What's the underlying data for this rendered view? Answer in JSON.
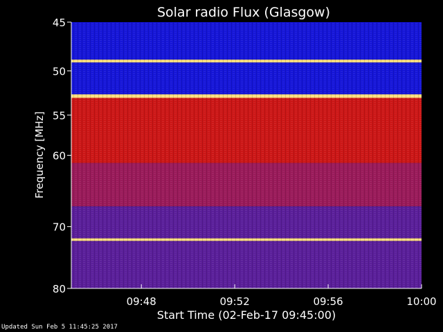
{
  "chart_data": {
    "type": "heatmap",
    "title": "Solar radio Flux (Glasgow)",
    "xlabel": "Start Time (02-Feb-17 09:45:00)",
    "ylabel": "Frequency [MHz]",
    "xlim": [
      "09:45",
      "10:00"
    ],
    "ylim": [
      45,
      80
    ],
    "x_ticks": [
      "09:48",
      "09:52",
      "09:56",
      "10:00"
    ],
    "y_ticks": [
      45,
      50,
      55,
      60,
      70,
      80
    ],
    "y_scale": "log",
    "bands": [
      {
        "from": 45,
        "to": 48.8,
        "level": "low"
      },
      {
        "from": 48.8,
        "to": 49.1,
        "level": "peak"
      },
      {
        "from": 49.1,
        "to": 52.6,
        "level": "low"
      },
      {
        "from": 52.6,
        "to": 53.0,
        "level": "peak"
      },
      {
        "from": 53.0,
        "to": 61.0,
        "level": "high"
      },
      {
        "from": 61.0,
        "to": 67.0,
        "level": "medium"
      },
      {
        "from": 67.0,
        "to": 71.8,
        "level": "medium-low"
      },
      {
        "from": 71.8,
        "to": 72.2,
        "level": "peak"
      },
      {
        "from": 72.2,
        "to": 80,
        "level": "medium-low"
      }
    ],
    "colors": {
      "low": "#1515d8",
      "medium-low": "#5a1e9a",
      "medium": "#9a1a5a",
      "high": "#cc1616",
      "peak": "#ffe080"
    }
  },
  "footer": {
    "updated": "Updated Sun Feb  5 11:45:25 2017"
  }
}
